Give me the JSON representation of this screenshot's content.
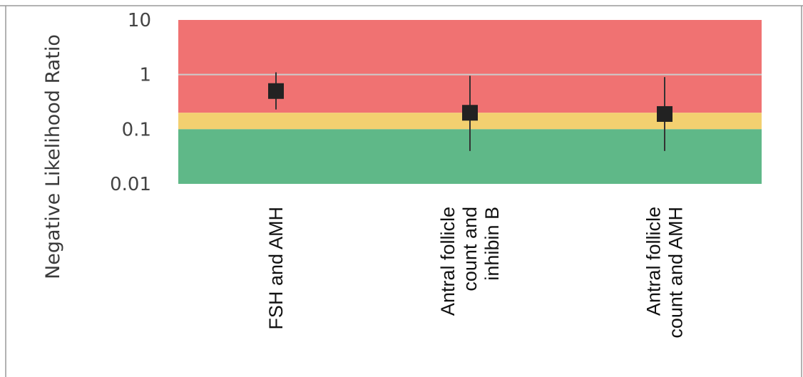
{
  "chart_data": {
    "type": "scatter",
    "ylabel": "Negative Likelihood Ratio",
    "yscale": "log",
    "ylim": [
      0.01,
      10
    ],
    "yticks": [
      "10",
      "1",
      "0.1",
      "0.01"
    ],
    "ytick_values": [
      10,
      1,
      0.1,
      0.01
    ],
    "categories": [
      [
        "FSH and AMH"
      ],
      [
        "Antral follicle",
        "count and",
        "inhibin B"
      ],
      [
        "Antral follicle",
        "count and AMH"
      ]
    ],
    "points": [
      {
        "value": 0.5,
        "lower": 0.23,
        "upper": 1.1
      },
      {
        "value": 0.2,
        "lower": 0.04,
        "upper": 0.95
      },
      {
        "value": 0.19,
        "lower": 0.04,
        "upper": 0.9
      }
    ],
    "bands": [
      {
        "from": 0.2,
        "to": 10,
        "color": "#f07272"
      },
      {
        "from": 0.1,
        "to": 0.2,
        "color": "#f3d070"
      },
      {
        "from": 0.01,
        "to": 0.1,
        "color": "#5fb888"
      }
    ],
    "reference_line": 1,
    "colors": {
      "marker": "#222222",
      "whisker": "#333333",
      "reference_line": "#cccccc",
      "frame": "#999999"
    }
  }
}
